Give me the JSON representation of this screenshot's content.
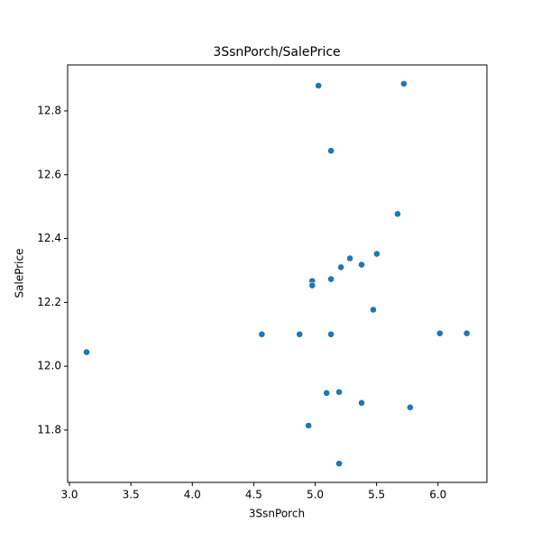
{
  "chart_data": {
    "type": "scatter",
    "title": "3SsnPorch/SalePrice",
    "x_label": "3SsnPorch",
    "y_label": "SalePrice",
    "color": "#1f77b4",
    "grid": false,
    "x": [
      5.027,
      5.722,
      5.129,
      5.671,
      5.502,
      5.283,
      5.378,
      5.21,
      5.129,
      4.976,
      4.976,
      5.473,
      4.566,
      4.873,
      5.129,
      6.015,
      6.234,
      3.139,
      5.093,
      5.195,
      5.378,
      5.773,
      4.946,
      5.195
    ],
    "values": [
      12.879,
      12.885,
      12.675,
      12.477,
      12.352,
      12.338,
      12.318,
      12.31,
      12.273,
      12.267,
      12.253,
      12.177,
      12.1,
      12.1,
      12.1,
      12.103,
      12.103,
      12.044,
      11.916,
      11.919,
      11.885,
      11.871,
      11.814,
      11.695
    ],
    "xlim": [
      2.985,
      6.398
    ],
    "ylim": [
      11.636,
      12.944
    ],
    "xticks": [
      {
        "value": 3,
        "label": "3.0"
      },
      3.5,
      {
        "value": 4,
        "label": "4.0"
      },
      4.5,
      {
        "value": 5,
        "label": "5.0"
      },
      5.5,
      {
        "value": 6,
        "label": "6.0"
      }
    ],
    "yticks": [
      11.8,
      {
        "value": 12,
        "label": "12.0"
      },
      12.2,
      12.4,
      12.6,
      12.8
    ]
  }
}
